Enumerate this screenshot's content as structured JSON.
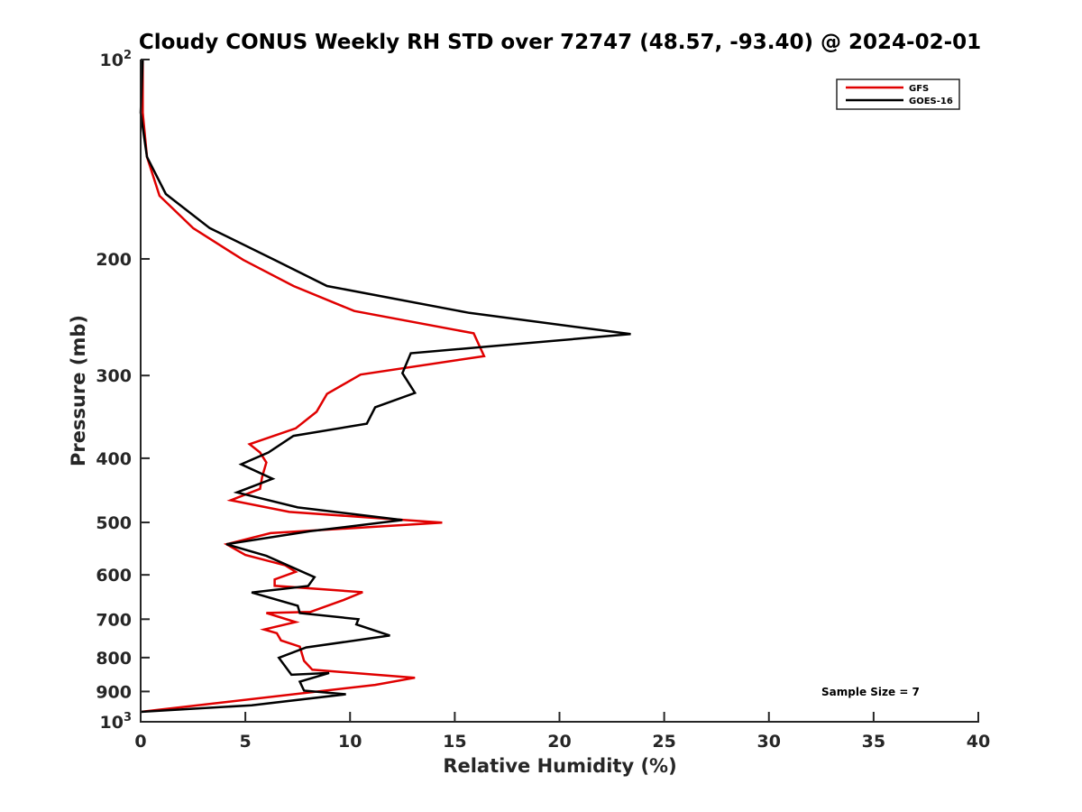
{
  "chart_data": {
    "type": "line",
    "title": "Cloudy CONUS Weekly RH STD over 72747 (48.57, -93.40) @ 2024-02-01",
    "xlabel": "Relative Humidity (%)",
    "ylabel": "Pressure (mb)",
    "xlim": [
      0,
      40
    ],
    "ylim": [
      100,
      1000
    ],
    "yscale": "log",
    "y_reversed": true,
    "grid": false,
    "x_ticks": [
      0,
      5,
      10,
      15,
      20,
      25,
      30,
      35,
      40
    ],
    "x_tick_labels": [
      "0",
      "5",
      "10",
      "15",
      "20",
      "25",
      "30",
      "35",
      "40"
    ],
    "y_ticks": [
      100,
      200,
      300,
      400,
      500,
      600,
      700,
      800,
      900,
      1000
    ],
    "y_tick_labels": [
      {
        "base": "10",
        "exp": "2"
      },
      {
        "base": "200"
      },
      {
        "base": "300"
      },
      {
        "base": "400"
      },
      {
        "base": "500"
      },
      {
        "base": "600"
      },
      {
        "base": "700"
      },
      {
        "base": "800"
      },
      {
        "base": "900"
      },
      {
        "base": "10",
        "exp": "3"
      }
    ],
    "legend": {
      "position": "top-right",
      "entries": [
        "GFS",
        "GOES-16"
      ]
    },
    "annotation": "Sample Size = 7",
    "series": [
      {
        "name": "GFS",
        "color": "#e00000",
        "points": [
          [
            0.1,
            100
          ],
          [
            0.1,
            120.3
          ],
          [
            0.3,
            140.3
          ],
          [
            0.9,
            160.6
          ],
          [
            2.5,
            179.7
          ],
          [
            4.9,
            200.7
          ],
          [
            7.3,
            219.8
          ],
          [
            10.2,
            239.7
          ],
          [
            15.9,
            259.0
          ],
          [
            16.4,
            280.4
          ],
          [
            10.5,
            299.1
          ],
          [
            8.9,
            319.7
          ],
          [
            8.4,
            340.3
          ],
          [
            7.4,
            360.5
          ],
          [
            5.2,
            380.9
          ],
          [
            5.7,
            392.0
          ],
          [
            6.0,
            405.9
          ],
          [
            5.8,
            426.8
          ],
          [
            5.7,
            444.9
          ],
          [
            4.3,
            463.0
          ],
          [
            7.1,
            482.1
          ],
          [
            14.4,
            500.4
          ],
          [
            6.2,
            519.0
          ],
          [
            4.1,
            539.3
          ],
          [
            5.0,
            559.9
          ],
          [
            6.9,
            580.4
          ],
          [
            7.4,
            593.7
          ],
          [
            6.4,
            609.5
          ],
          [
            6.4,
            623.3
          ],
          [
            10.6,
            637.3
          ],
          [
            9.7,
            654.6
          ],
          [
            8.1,
            682.7
          ],
          [
            6.0,
            684.9
          ],
          [
            7.4,
            707.1
          ],
          [
            5.9,
            725.4
          ],
          [
            6.5,
            734.8
          ],
          [
            6.7,
            753.5
          ],
          [
            7.6,
            770.1
          ],
          [
            7.8,
            809.1
          ],
          [
            8.2,
            834.3
          ],
          [
            13.1,
            858.1
          ],
          [
            11.2,
            879.6
          ],
          [
            0.0,
            966.1
          ]
        ]
      },
      {
        "name": "GOES-16",
        "color": "#000000",
        "points": [
          [
            0.1,
            100
          ],
          [
            0.0,
            120.3
          ],
          [
            0.3,
            140.3
          ],
          [
            1.2,
            159.6
          ],
          [
            3.3,
            179.7
          ],
          [
            6.4,
            200.7
          ],
          [
            8.9,
            219.8
          ],
          [
            15.7,
            241.3
          ],
          [
            23.4,
            259.8
          ],
          [
            12.9,
            277.6
          ],
          [
            12.5,
            297.6
          ],
          [
            13.1,
            318.7
          ],
          [
            11.2,
            335.0
          ],
          [
            10.8,
            354.7
          ],
          [
            7.3,
            370.0
          ],
          [
            6.1,
            392.0
          ],
          [
            4.8,
            408.5
          ],
          [
            6.3,
            429.7
          ],
          [
            4.6,
            450.5
          ],
          [
            7.5,
            474.6
          ],
          [
            12.5,
            495.8
          ],
          [
            8.1,
            515.6
          ],
          [
            4.1,
            539.3
          ],
          [
            6.0,
            561.6
          ],
          [
            8.3,
            604.7
          ],
          [
            8.0,
            623.6
          ],
          [
            5.3,
            637.9
          ],
          [
            7.5,
            668.1
          ],
          [
            7.6,
            685.2
          ],
          [
            10.4,
            700.0
          ],
          [
            10.3,
            712.9
          ],
          [
            11.9,
            741.0
          ],
          [
            7.9,
            772.3
          ],
          [
            6.6,
            800.5
          ],
          [
            7.2,
            849.1
          ],
          [
            9.0,
            844.0
          ],
          [
            7.6,
            869.6
          ],
          [
            7.8,
            897.3
          ],
          [
            9.8,
            908.7
          ],
          [
            5.3,
            944.2
          ],
          [
            0.0,
            966.1
          ]
        ]
      }
    ]
  }
}
